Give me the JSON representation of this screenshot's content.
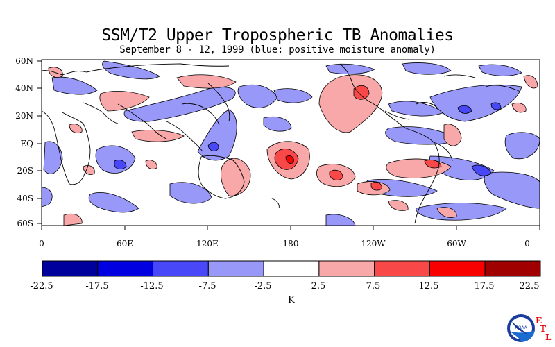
{
  "title": "SSM/T2 Upper Tropospheric TB Anomalies",
  "subtitle": "September 8 - 12, 1999 (blue: positive moisture anomaly)",
  "lat_labels": [
    "60N",
    "40N",
    "20N",
    "EQ",
    "20S",
    "40S",
    "60S"
  ],
  "lon_labels": [
    "0",
    "60E",
    "120E",
    "180",
    "120W",
    "60W",
    "0"
  ],
  "colorbar": {
    "ticks": [
      "-22.5",
      "-17.5",
      "-12.5",
      "-7.5",
      "-2.5",
      "2.5",
      "7.5",
      "12.5",
      "17.5",
      "22.5"
    ],
    "colors": [
      "#00009c",
      "#0000e0",
      "#4848f8",
      "#9898f8",
      "#ffffff",
      "#f8a8a8",
      "#f84848",
      "#f80000",
      "#a00000"
    ],
    "unit": "K"
  },
  "logo": {
    "name": "NOAA",
    "letters": [
      "E",
      "T",
      "L"
    ]
  }
}
